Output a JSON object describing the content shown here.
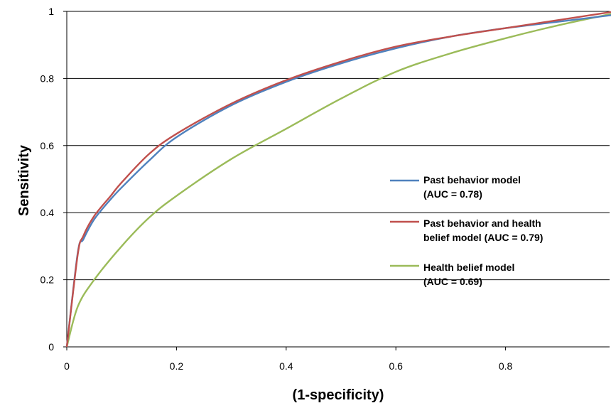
{
  "chart_data": {
    "type": "line",
    "title": "",
    "xlabel": "(1-specificity)",
    "ylabel": "Sensitivity",
    "xlim": [
      0,
      1
    ],
    "ylim": [
      0,
      1
    ],
    "x_ticks": [
      "0",
      "0.2",
      "0.4",
      "0.6",
      "0.8"
    ],
    "y_ticks": [
      "0",
      "0.2",
      "0.4",
      "0.6",
      "0.8",
      "1"
    ],
    "grid": "horizontal",
    "legend_position": "right",
    "series": [
      {
        "name": "Past behavior model (AUC = 0.78)",
        "legend_lines": [
          "Past behavior model",
          "(AUC = 0.78)"
        ],
        "color": "#4f81bd",
        "x": [
          0,
          0.02,
          0.03,
          0.05,
          0.08,
          0.1,
          0.15,
          0.2,
          0.3,
          0.4,
          0.5,
          0.6,
          0.7,
          0.8,
          0.9,
          1.0
        ],
        "y": [
          0,
          0.28,
          0.32,
          0.38,
          0.44,
          0.475,
          0.555,
          0.625,
          0.72,
          0.79,
          0.845,
          0.89,
          0.925,
          0.95,
          0.97,
          0.99
        ]
      },
      {
        "name": "Past behavior and health belief model (AUC = 0.79)",
        "legend_lines": [
          "Past behavior and health",
          "belief model (AUC = 0.79)"
        ],
        "color": "#c0504d",
        "x": [
          0,
          0.02,
          0.03,
          0.05,
          0.08,
          0.1,
          0.15,
          0.2,
          0.3,
          0.4,
          0.5,
          0.6,
          0.7,
          0.8,
          0.9,
          1.0
        ],
        "y": [
          0,
          0.275,
          0.33,
          0.39,
          0.45,
          0.49,
          0.575,
          0.635,
          0.725,
          0.795,
          0.85,
          0.895,
          0.925,
          0.95,
          0.975,
          1.0
        ]
      },
      {
        "name": "Health belief model (AUC = 0.69)",
        "legend_lines": [
          "Health belief model",
          "(AUC = 0.69)"
        ],
        "color": "#9bbb59",
        "x": [
          0,
          0.02,
          0.05,
          0.1,
          0.15,
          0.2,
          0.3,
          0.4,
          0.5,
          0.6,
          0.7,
          0.8,
          0.9,
          1.0
        ],
        "y": [
          0,
          0.12,
          0.2,
          0.3,
          0.385,
          0.45,
          0.56,
          0.65,
          0.74,
          0.82,
          0.875,
          0.92,
          0.96,
          0.995
        ]
      }
    ]
  }
}
